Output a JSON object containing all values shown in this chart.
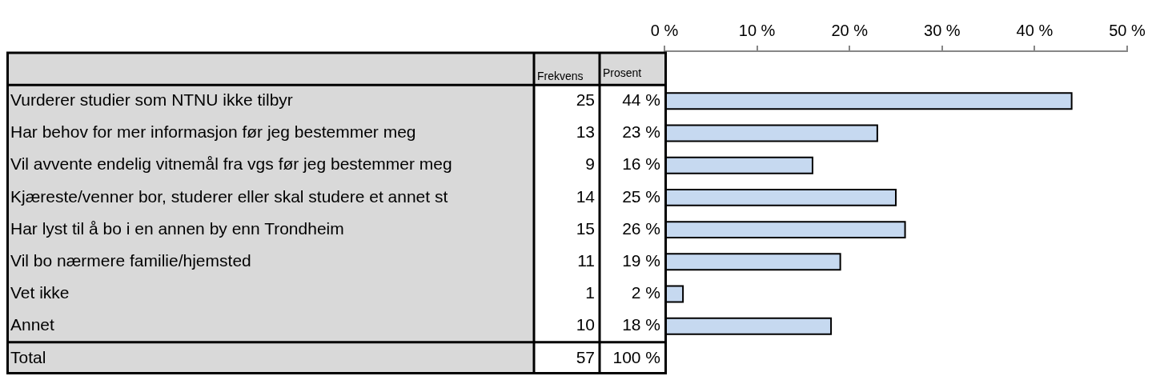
{
  "chart_data": {
    "type": "bar",
    "orientation": "horizontal",
    "categories": [
      "Vurderer studier som NTNU ikke tilbyr",
      "Har behov for mer informasjon før jeg bestemmer meg",
      "Vil avvente endelig vitnemål fra vgs før jeg bestemmer meg",
      "Kjæreste/venner bor, studerer eller skal studere et annet st",
      "Har lyst til å bo i en annen by enn Trondheim",
      "Vil bo nærmere familie/hjemsted",
      "Vet ikke",
      "Annet"
    ],
    "series": [
      {
        "color": "#c6d9f0",
        "axis": "x2",
        "values": [
          44,
          23,
          16,
          25,
          26,
          19,
          2,
          18
        ],
        "value_labels": [
          "44 %",
          "23 %",
          "16 %",
          "25 %",
          "26 %",
          "19 %",
          "2 %",
          "18 %"
        ]
      }
    ],
    "x2lim": [
      0,
      50
    ],
    "x2ticks": [
      {
        "value": 0,
        "label": "0 %"
      },
      {
        "value": 10,
        "label": "10 %"
      },
      {
        "value": 20,
        "label": "20 %"
      },
      {
        "value": 30,
        "label": "30 %"
      },
      {
        "value": 40,
        "label": "40 %"
      },
      {
        "value": 50,
        "label": "50 %"
      }
    ],
    "annotations": [
      "Frekvens",
      "Prosent",
      "25",
      "13",
      "9",
      "14",
      "15",
      "11",
      "1",
      "10",
      "Total",
      "57",
      "100 %"
    ]
  }
}
